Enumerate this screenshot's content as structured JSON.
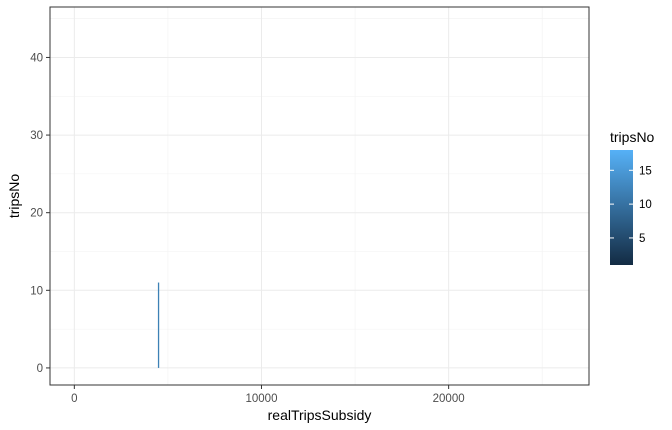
{
  "chart_data": {
    "type": "bar",
    "xlabel": "realTripsSubsidy",
    "ylabel": "tripsNo",
    "xlim": [
      -1300,
      27500
    ],
    "ylim": [
      -2.2,
      46.5
    ],
    "x_ticks": [
      0,
      10000,
      20000
    ],
    "x_tick_labels": [
      "0",
      "10000",
      "20000"
    ],
    "y_ticks": [
      0,
      10,
      20,
      30,
      40
    ],
    "y_tick_labels": [
      "0",
      "10",
      "20",
      "30",
      "40"
    ],
    "grid": true,
    "bars": [
      {
        "x": 4500,
        "y0": 0,
        "y1": 11,
        "color": "#3d81b5"
      }
    ],
    "legend": {
      "title": "tripsNo",
      "type": "colorbar",
      "position": "right",
      "range": [
        1,
        18
      ],
      "ticks": [
        5,
        10,
        15
      ],
      "tick_labels": [
        "5",
        "10",
        "15"
      ],
      "low_color": "#132b43",
      "high_color": "#56b1f7"
    }
  }
}
